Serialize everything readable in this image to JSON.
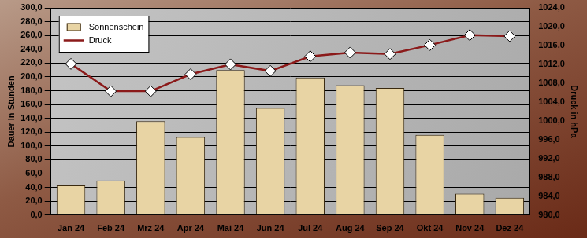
{
  "chart_data": {
    "type": "bar",
    "categories": [
      "Jan 24",
      "Feb 24",
      "Mrz 24",
      "Apr 24",
      "Mai 24",
      "Jun 24",
      "Jul 24",
      "Aug 24",
      "Sep 24",
      "Okt 24",
      "Nov 24",
      "Dez 24"
    ],
    "series": [
      {
        "name": "Sonnenschein",
        "type": "bar",
        "color": "#e8d4a4",
        "values": [
          43,
          50,
          136,
          113,
          210,
          155,
          199,
          188,
          184,
          116,
          31,
          25
        ]
      },
      {
        "name": "Druck",
        "type": "line",
        "color": "#8b1a1a",
        "marker": "diamond",
        "axis": "y2",
        "values": [
          1012.1,
          1006.3,
          1006.3,
          1009.9,
          1012.0,
          1010.6,
          1013.7,
          1014.5,
          1014.2,
          1016.1,
          1018.2,
          1018.0
        ]
      }
    ],
    "y_label": "Dauer in Stunden",
    "y2_label": "Druck in hPa",
    "ylim": [
      0,
      300
    ],
    "yticks": [
      {
        "value": 0,
        "label": "0,0"
      },
      {
        "value": 20,
        "label": "20,0"
      },
      {
        "value": 40,
        "label": "40,0"
      },
      {
        "value": 60,
        "label": "60,0"
      },
      {
        "value": 80,
        "label": "80,0"
      },
      {
        "value": 100,
        "label": "100,0"
      },
      {
        "value": 120,
        "label": "120,0"
      },
      {
        "value": 140,
        "label": "140,0"
      },
      {
        "value": 160,
        "label": "160,0"
      },
      {
        "value": 180,
        "label": "180,0"
      },
      {
        "value": 200,
        "label": "200,0"
      },
      {
        "value": 220,
        "label": "220,0"
      },
      {
        "value": 240,
        "label": "240,0"
      },
      {
        "value": 260,
        "label": "260,0"
      },
      {
        "value": 280,
        "label": "280,0"
      },
      {
        "value": 300,
        "label": "300,0"
      }
    ],
    "y2lim": [
      980,
      1024
    ],
    "y2ticks": [
      {
        "value": 980,
        "label": "980,0"
      },
      {
        "value": 984,
        "label": "984,0"
      },
      {
        "value": 988,
        "label": "988,0"
      },
      {
        "value": 992,
        "label": "992,0"
      },
      {
        "value": 996,
        "label": "996,0"
      },
      {
        "value": 1000,
        "label": "1000,0"
      },
      {
        "value": 1004,
        "label": "1004,0"
      },
      {
        "value": 1008,
        "label": "1008,0"
      },
      {
        "value": 1012,
        "label": "1012,0"
      },
      {
        "value": 1016,
        "label": "1016,0"
      },
      {
        "value": 1020,
        "label": "1020,0"
      },
      {
        "value": 1024,
        "label": "1024,0"
      }
    ],
    "grid": true,
    "legend": "upper left"
  }
}
